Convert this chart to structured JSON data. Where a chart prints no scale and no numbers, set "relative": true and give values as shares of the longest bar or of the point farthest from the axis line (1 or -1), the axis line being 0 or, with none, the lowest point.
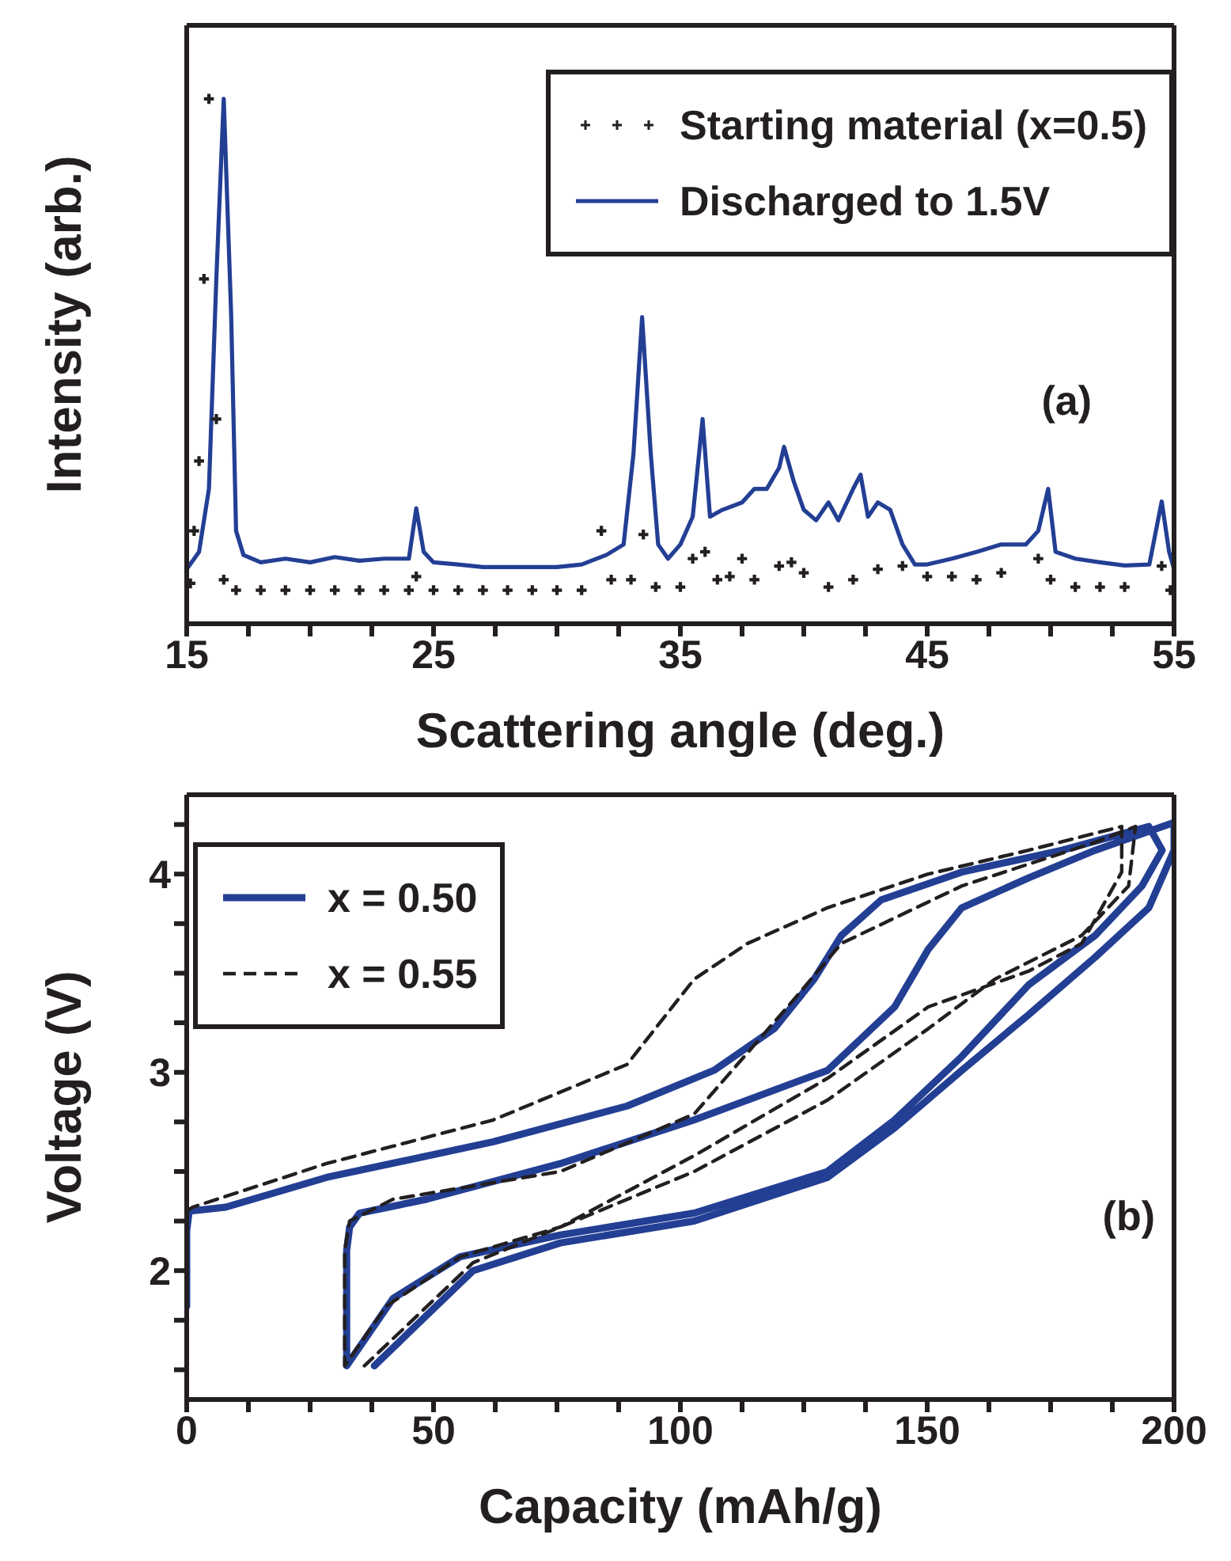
{
  "chart_data": [
    {
      "type": "line",
      "xlabel": "Scattering angle (deg.)",
      "ylabel": "Intensity (arb.)",
      "relative": true,
      "tick_labels": "x",
      "legend": "top right",
      "annotations": [
        "(a)"
      ],
      "xlim": [
        15,
        55
      ],
      "xticks": [
        15,
        {
          "value": 17.5,
          "label": null
        },
        {
          "value": 20,
          "label": null
        },
        {
          "value": 22.5,
          "label": null
        },
        25,
        {
          "value": 27.5,
          "label": null
        },
        {
          "value": 30,
          "label": null
        },
        {
          "value": 32.5,
          "label": null
        },
        35,
        {
          "value": 37.5,
          "label": null
        },
        {
          "value": 40,
          "label": null
        },
        {
          "value": 42.5,
          "label": null
        },
        45,
        {
          "value": 47.5,
          "label": null
        },
        {
          "value": 50,
          "label": null
        },
        {
          "value": 52.5,
          "label": null
        },
        55
      ],
      "series": [
        {
          "name": "Starting material (x=0.5)",
          "type": "scatter",
          "marker": "cross",
          "color": "#231f20",
          "x": [
            15.15,
            15.3,
            15.5,
            15.7,
            15.9,
            16.2,
            16.5,
            17,
            18,
            19,
            20,
            21,
            22,
            23,
            24,
            24.3,
            25,
            26,
            27,
            28,
            29,
            30,
            31,
            31.8,
            32.2,
            33,
            33.5,
            34,
            35,
            35.5,
            36,
            36.5,
            37,
            37.5,
            38,
            39,
            39.5,
            40,
            41,
            42,
            43,
            44,
            45,
            46,
            47,
            48,
            49.5,
            50,
            51,
            52,
            53,
            54.5,
            54.85
          ],
          "values": [
            0.077,
            0.177,
            0.31,
            0.657,
            1.0,
            0.39,
            0.084,
            0.064,
            0.064,
            0.064,
            0.064,
            0.064,
            0.064,
            0.064,
            0.064,
            0.09,
            0.064,
            0.064,
            0.064,
            0.064,
            0.064,
            0.064,
            0.064,
            0.177,
            0.084,
            0.084,
            0.17,
            0.07,
            0.07,
            0.124,
            0.137,
            0.084,
            0.09,
            0.124,
            0.084,
            0.11,
            0.117,
            0.097,
            0.07,
            0.084,
            0.104,
            0.11,
            0.09,
            0.09,
            0.084,
            0.097,
            0.124,
            0.084,
            0.07,
            0.07,
            0.07,
            0.11,
            0.064
          ]
        },
        {
          "name": "Discharged to 1.5V",
          "type": "line",
          "color": "#233f94",
          "x": [
            15,
            15.5,
            15.9,
            16.2,
            16.5,
            16.8,
            17,
            17.3,
            18,
            19,
            20,
            21,
            22,
            23,
            24,
            24.3,
            24.6,
            25,
            26,
            27,
            28,
            29,
            30,
            31,
            32,
            32.7,
            33.1,
            33.45,
            33.8,
            34.1,
            34.5,
            35,
            35.5,
            35.9,
            36.2,
            36.7,
            37.5,
            38,
            38.5,
            39,
            39.2,
            39.6,
            40,
            40.5,
            41,
            41.4,
            42,
            42.3,
            42.6,
            43,
            43.5,
            44,
            44.5,
            45,
            46,
            47,
            48,
            49,
            49.5,
            49.9,
            50.2,
            51,
            52,
            53,
            54,
            54.5,
            54.8,
            55
          ],
          "values": [
            0.104,
            0.137,
            0.257,
            0.657,
            1.0,
            0.59,
            0.177,
            0.131,
            0.117,
            0.124,
            0.117,
            0.127,
            0.12,
            0.124,
            0.124,
            0.22,
            0.137,
            0.117,
            0.113,
            0.108,
            0.108,
            0.108,
            0.108,
            0.113,
            0.131,
            0.151,
            0.324,
            0.584,
            0.324,
            0.151,
            0.124,
            0.151,
            0.204,
            0.39,
            0.204,
            0.217,
            0.231,
            0.257,
            0.257,
            0.297,
            0.337,
            0.27,
            0.217,
            0.197,
            0.231,
            0.197,
            0.257,
            0.284,
            0.204,
            0.231,
            0.217,
            0.151,
            0.113,
            0.113,
            0.124,
            0.137,
            0.151,
            0.151,
            0.177,
            0.257,
            0.137,
            0.124,
            0.117,
            0.111,
            0.113,
            0.233,
            0.137,
            0.104
          ]
        }
      ]
    },
    {
      "type": "line",
      "xlabel": "Capacity (mAh/g)",
      "ylabel": "Voltage (V)",
      "legend": "top left",
      "annotations": [
        "(b)"
      ],
      "xlim": [
        0,
        200
      ],
      "ylim": [
        1.35,
        4.4
      ],
      "xticks": [
        0,
        {
          "value": 12.5,
          "label": null
        },
        {
          "value": 25,
          "label": null
        },
        {
          "value": 37.5,
          "label": null
        },
        50,
        {
          "value": 62.5,
          "label": null
        },
        {
          "value": 75,
          "label": null
        },
        {
          "value": 87.5,
          "label": null
        },
        100,
        {
          "value": 112.5,
          "label": null
        },
        {
          "value": 125,
          "label": null
        },
        {
          "value": 137.5,
          "label": null
        },
        150,
        {
          "value": 162.5,
          "label": null
        },
        {
          "value": 175,
          "label": null
        },
        {
          "value": 187.5,
          "label": null
        },
        200
      ],
      "yticks": [
        {
          "value": 1.5,
          "label": null
        },
        {
          "value": 1.75,
          "label": null
        },
        2,
        {
          "value": 2.25,
          "label": null
        },
        {
          "value": 2.5,
          "label": null
        },
        {
          "value": 2.75,
          "label": null
        },
        3,
        {
          "value": 3.25,
          "label": null
        },
        {
          "value": 3.5,
          "label": null
        },
        {
          "value": 3.75,
          "label": null
        },
        4,
        {
          "value": 4.25,
          "label": null
        }
      ],
      "series": [
        {
          "name": "x = 0.50",
          "color": "#233f94",
          "line_style": "solid",
          "x": [
            0,
            0,
            0.5,
            7.9,
            28.3,
            62.1,
            89.2,
            106.8,
            119,
            127.1,
            132.6,
            140.7,
            157,
            177.3,
            194.9,
            197.6,
            193.5,
            184,
            170.5,
            157,
            143.4,
            129.8,
            102.8,
            75.7,
            55.4,
            41.8,
            32.4,
            32.4,
            33,
            35,
            48.6,
            75.7,
            102.8,
            129.8,
            143.4,
            150.2,
            157,
            170.5,
            184,
            200,
            200,
            194.9,
            184,
            170.5,
            157,
            143.4,
            129.8,
            102.8,
            75.7,
            58,
            38
          ],
          "values": [
            1.82,
            2.2,
            2.3,
            2.32,
            2.47,
            2.65,
            2.83,
            3.01,
            3.22,
            3.47,
            3.69,
            3.87,
            4.01,
            4.12,
            4.24,
            4.12,
            3.94,
            3.69,
            3.44,
            3.08,
            2.76,
            2.5,
            2.29,
            2.18,
            2.07,
            1.86,
            1.52,
            2.1,
            2.22,
            2.29,
            2.36,
            2.54,
            2.76,
            3.01,
            3.33,
            3.62,
            3.83,
            3.98,
            4.12,
            4.26,
            4.12,
            3.83,
            3.58,
            3.29,
            3.01,
            2.72,
            2.47,
            2.25,
            2.14,
            2.0,
            1.52
          ]
        },
        {
          "name": "x = 0.55",
          "color": "#231f20",
          "line_style": "dashed",
          "x": [
            0,
            1.2,
            28.3,
            62.1,
            89.2,
            102.8,
            113.6,
            129.8,
            150.2,
            170.5,
            189.4,
            189.4,
            181.3,
            170.5,
            150.2,
            129.8,
            102.8,
            75.7,
            55.4,
            40.4,
            32,
            32,
            33,
            41.8,
            75.7,
            102.8,
            123.1,
            132.6,
            157,
            184,
            192.2,
            190.8,
            181.3,
            163.7,
            150.2,
            129.8,
            102.8,
            75.7,
            58,
            36
          ],
          "values": [
            2.3,
            2.32,
            2.54,
            2.76,
            3.04,
            3.47,
            3.65,
            3.83,
            4.0,
            4.12,
            4.24,
            4.01,
            3.65,
            3.51,
            3.33,
            2.97,
            2.58,
            2.22,
            2.07,
            1.82,
            1.52,
            2.1,
            2.25,
            2.36,
            2.5,
            2.79,
            3.37,
            3.65,
            3.94,
            4.16,
            4.24,
            3.94,
            3.69,
            3.47,
            3.22,
            2.86,
            2.5,
            2.22,
            2.04,
            1.52
          ]
        }
      ]
    }
  ]
}
